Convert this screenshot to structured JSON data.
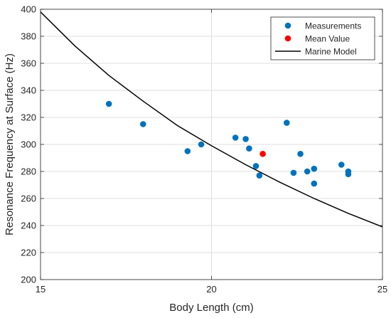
{
  "chart_data": {
    "type": "scatter",
    "title": "",
    "xlabel": "Body Length (cm)",
    "ylabel": "Resonance Frequency at Surface (Hz)",
    "xlim": [
      15,
      25
    ],
    "ylim": [
      200,
      400
    ],
    "xticks": [
      15,
      20,
      25
    ],
    "yticks": [
      200,
      220,
      240,
      260,
      280,
      300,
      320,
      340,
      360,
      380,
      400
    ],
    "grid": true,
    "legend_position": "top-right",
    "series": [
      {
        "name": "Measurements",
        "kind": "scatter",
        "color": "#0072BD",
        "points": [
          {
            "x": 17.0,
            "y": 330
          },
          {
            "x": 18.0,
            "y": 315
          },
          {
            "x": 19.3,
            "y": 295
          },
          {
            "x": 19.7,
            "y": 300
          },
          {
            "x": 20.7,
            "y": 305
          },
          {
            "x": 21.0,
            "y": 304
          },
          {
            "x": 21.1,
            "y": 297
          },
          {
            "x": 21.3,
            "y": 284
          },
          {
            "x": 21.4,
            "y": 277
          },
          {
            "x": 22.2,
            "y": 316
          },
          {
            "x": 22.4,
            "y": 279
          },
          {
            "x": 22.6,
            "y": 293
          },
          {
            "x": 22.8,
            "y": 280
          },
          {
            "x": 23.0,
            "y": 282
          },
          {
            "x": 23.0,
            "y": 271
          },
          {
            "x": 23.8,
            "y": 285
          },
          {
            "x": 24.0,
            "y": 280
          },
          {
            "x": 24.0,
            "y": 278
          }
        ]
      },
      {
        "name": "Mean Value",
        "kind": "scatter",
        "color": "#FF0000",
        "points": [
          {
            "x": 21.5,
            "y": 293
          }
        ]
      },
      {
        "name": "Marine Model",
        "kind": "line",
        "color": "#000000",
        "points": [
          {
            "x": 15,
            "y": 398
          },
          {
            "x": 16,
            "y": 373
          },
          {
            "x": 17,
            "y": 351
          },
          {
            "x": 18,
            "y": 332
          },
          {
            "x": 19,
            "y": 314
          },
          {
            "x": 20,
            "y": 299
          },
          {
            "x": 21,
            "y": 285
          },
          {
            "x": 22,
            "y": 272
          },
          {
            "x": 23,
            "y": 260
          },
          {
            "x": 24,
            "y": 249
          },
          {
            "x": 25,
            "y": 239
          }
        ]
      }
    ]
  }
}
